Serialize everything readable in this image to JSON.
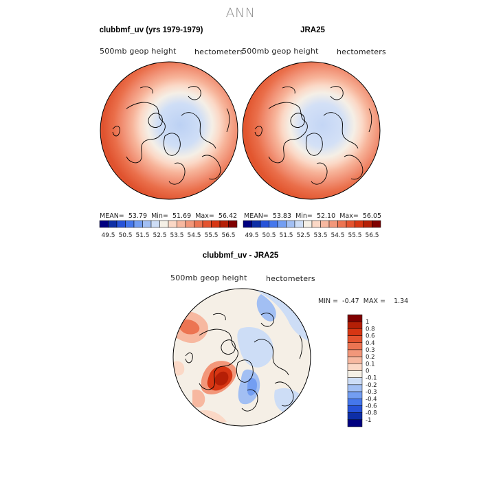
{
  "figure_title": "ANN",
  "chart_data": [
    {
      "type": "heatmap",
      "projection": "north polar stereographic",
      "title": "clubbmf_uv (yrs 1979-1979)",
      "left_label": "500mb geop height",
      "right_label": "hectometers",
      "stats": {
        "mean_label": "MEAN=",
        "mean": "53.79",
        "min_label": "Min=",
        "min": "51.69",
        "max_label": "Max=",
        "max": "56.42"
      },
      "colorbar": {
        "orientation": "horizontal",
        "levels": [
          "49.5",
          "50.5",
          "51.5",
          "52.5",
          "53.5",
          "54.5",
          "55.5",
          "56.5"
        ],
        "colors": [
          "#000080",
          "#0d2ea6",
          "#2652d8",
          "#4577ec",
          "#739ef2",
          "#a2bff3",
          "#cdddf6",
          "#f5f0e6",
          "#fbd8c6",
          "#f7b8a0",
          "#f2977a",
          "#ec7452",
          "#e4532f",
          "#d73613",
          "#b51f06",
          "#800000"
        ]
      }
    },
    {
      "type": "heatmap",
      "projection": "north polar stereographic",
      "title": "JRA25",
      "left_label": "500mb geop height",
      "right_label": "hectometers",
      "stats": {
        "mean_label": "MEAN=",
        "mean": "53.83",
        "min_label": "Min=",
        "min": "52.10",
        "max_label": "Max=",
        "max": "56.05"
      },
      "colorbar": {
        "orientation": "horizontal",
        "levels": [
          "49.5",
          "50.5",
          "51.5",
          "52.5",
          "53.5",
          "54.5",
          "55.5",
          "56.5"
        ],
        "colors": [
          "#000080",
          "#0d2ea6",
          "#2652d8",
          "#4577ec",
          "#739ef2",
          "#a2bff3",
          "#cdddf6",
          "#f5f0e6",
          "#fbd8c6",
          "#f7b8a0",
          "#f2977a",
          "#ec7452",
          "#e4532f",
          "#d73613",
          "#b51f06",
          "#800000"
        ]
      }
    },
    {
      "type": "heatmap",
      "projection": "north polar stereographic",
      "title": "clubbmf_uv - JRA25",
      "left_label": "500mb geop height",
      "right_label": "hectometers",
      "stats": {
        "min_label": "MIN =",
        "min": "-0.47",
        "max_label": "MAX =",
        "max": "1.34"
      },
      "colorbar": {
        "orientation": "vertical",
        "levels": [
          "1",
          "0.8",
          "0.6",
          "0.4",
          "0.3",
          "0.2",
          "0.1",
          "0",
          "-0.1",
          "-0.2",
          "-0.3",
          "-0.4",
          "-0.6",
          "-0.8",
          "-1"
        ],
        "colors": [
          "#800000",
          "#b51f06",
          "#d73613",
          "#e4532f",
          "#ec7452",
          "#f2977a",
          "#f7b8a0",
          "#fbd8c6",
          "#f5f0e6",
          "#cdddf6",
          "#a2bff3",
          "#739ef2",
          "#4577ec",
          "#2652d8",
          "#0d2ea6",
          "#000080"
        ]
      }
    }
  ]
}
